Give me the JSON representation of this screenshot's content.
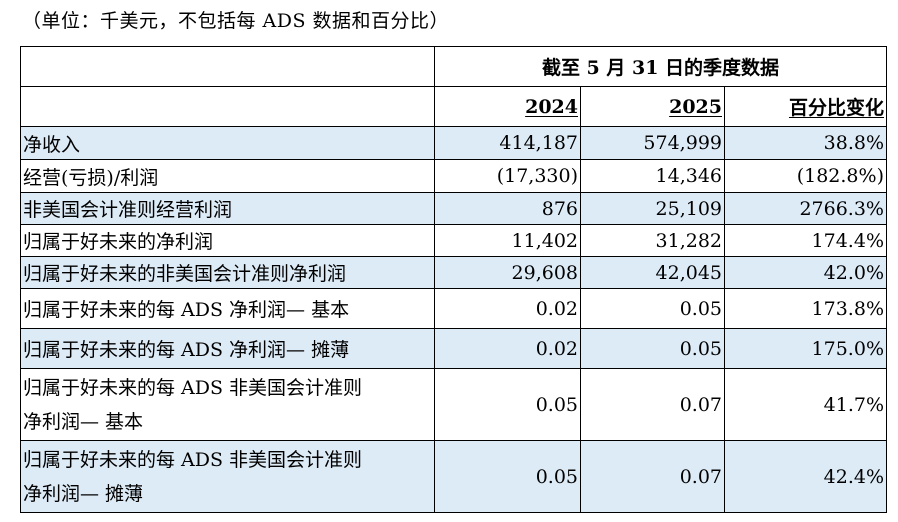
{
  "note": "（单位：千美元，不包括每 ADS 数据和百分比）",
  "header": {
    "period": "截至 5 月 31 日的季度数据",
    "col_2024": "2024",
    "col_2025": "2025",
    "col_change": "百分比变化"
  },
  "rows": [
    {
      "label": "净收入",
      "v2024": "414,187",
      "v2025": "574,999",
      "change": "38.8%"
    },
    {
      "label": "经营(亏损)/利润",
      "v2024": "(17,330)",
      "v2025": "14,346",
      "change": "(182.8%)"
    },
    {
      "label": "非美国会计准则经营利润",
      "v2024": "876",
      "v2025": "25,109",
      "change": "2766.3%"
    },
    {
      "label": "归属于好未来的净利润",
      "v2024": "11,402",
      "v2025": "31,282",
      "change": "174.4%"
    },
    {
      "label": "归属于好未来的非美国会计准则净利润",
      "v2024": "29,608",
      "v2025": "42,045",
      "change": "42.0%"
    },
    {
      "label": "归属于好未来的每 ADS 净利润— 基本",
      "v2024": "0.02",
      "v2025": "0.05",
      "change": "173.8%"
    },
    {
      "label": "归属于好未来的每 ADS 净利润— 摊薄",
      "v2024": "0.02",
      "v2025": "0.05",
      "change": "175.0%"
    },
    {
      "label_line1": "归属于好未来的每 ADS 非美国会计准则",
      "label_line2": "净利润— 基本",
      "v2024": "0.05",
      "v2025": "0.07",
      "change": "41.7%"
    },
    {
      "label_line1": "归属于好未来的每 ADS 非美国会计准则",
      "label_line2": "净利润— 摊薄",
      "v2024": "0.05",
      "v2025": "0.07",
      "change": "42.4%"
    }
  ]
}
